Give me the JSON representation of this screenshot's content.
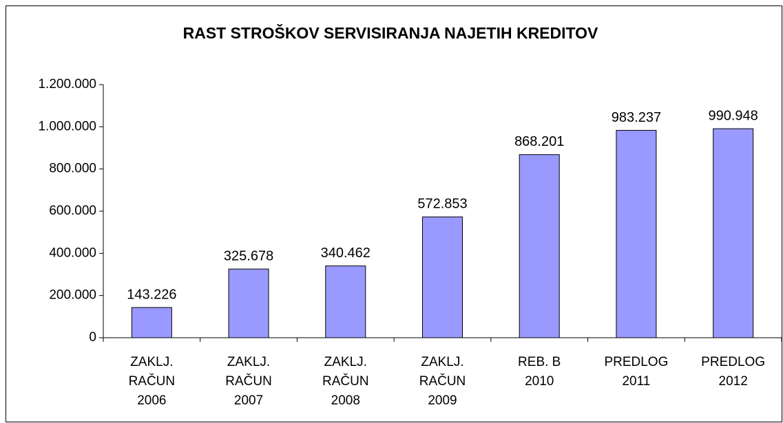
{
  "chart_data": {
    "type": "bar",
    "title": "RAST STROŠKOV SERVISIRANJA NAJETIH KREDITOV",
    "categories": [
      [
        "ZAKLJ.",
        "RAČUN",
        "2006"
      ],
      [
        "ZAKLJ.",
        "RAČUN",
        "2007"
      ],
      [
        "ZAKLJ.",
        "RAČUN",
        "2008"
      ],
      [
        "ZAKLJ.",
        "RAČUN",
        "2009"
      ],
      [
        "REB. B",
        "2010"
      ],
      [
        "PREDLOG",
        "2011"
      ],
      [
        "PREDLOG",
        "2012"
      ]
    ],
    "values": [
      143226,
      325678,
      340462,
      572853,
      868201,
      983237,
      990948
    ],
    "value_labels": [
      "143.226",
      "325.678",
      "340.462",
      "572.853",
      "868.201",
      "983.237",
      "990.948"
    ],
    "color": "#9999ff",
    "ylim": [
      0,
      1200000
    ],
    "yticks": [
      0,
      {
        "value": 200000,
        "label": "200.000"
      },
      {
        "value": 400000,
        "label": "400.000"
      },
      {
        "value": 600000,
        "label": "600.000"
      },
      {
        "value": 800000,
        "label": "800.000"
      },
      {
        "value": 1000000,
        "label": "1.000.000"
      },
      {
        "value": 1200000,
        "label": "1.200.000"
      }
    ],
    "grid": false
  }
}
